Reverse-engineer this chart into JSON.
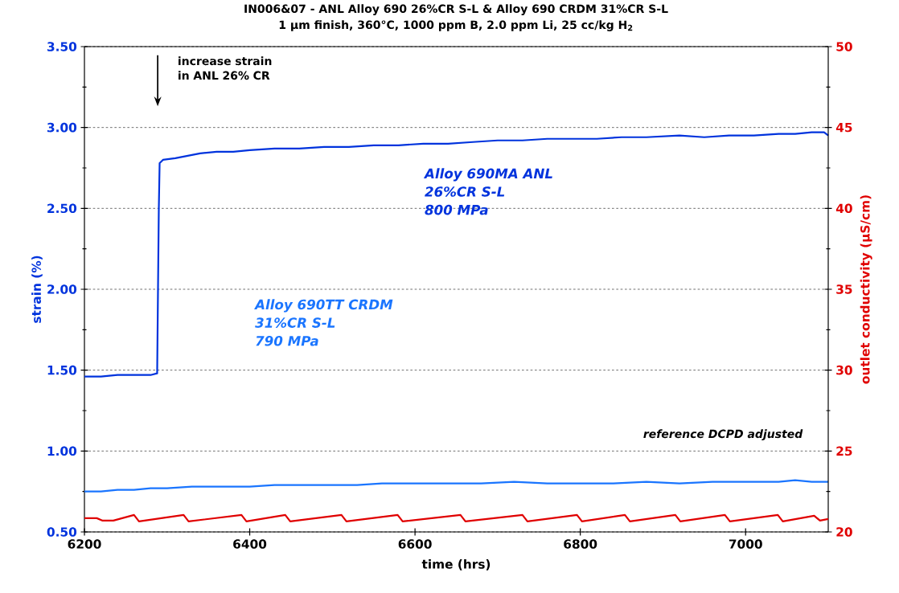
{
  "chart_data": {
    "type": "line",
    "title": "IN006&07 - ANL Alloy 690 26%CR S-L & Alloy 690 CRDM 31%CR S-L",
    "subtitle": "1 µm finish, 360°C, 1000 ppm B, 2.0 ppm Li, 25 cc/kg H$_{2}$",
    "xlabel": "time (hrs)",
    "ylabel": "strain (%)",
    "y2label": "outlet conductivity (µS/cm)",
    "xlim": [
      6200,
      7100
    ],
    "xticks": [
      6200,
      6400,
      6600,
      6800,
      7000
    ],
    "ylim": [
      0.5,
      3.5
    ],
    "yticks": [
      {
        "value": 0.5,
        "label": "0.50"
      },
      {
        "value": 1.0,
        "label": "1.00"
      },
      {
        "value": 1.5,
        "label": "1.50"
      },
      {
        "value": 2.0,
        "label": "2.00"
      },
      {
        "value": 2.5,
        "label": "2.50"
      },
      {
        "value": 3.0,
        "label": "3.00"
      },
      {
        "value": 3.5,
        "label": "3.50"
      }
    ],
    "y2lim": [
      20,
      50
    ],
    "y2ticks": [
      20,
      25,
      30,
      35,
      40,
      45,
      50
    ],
    "grid": "y",
    "annotations": [
      "increase strain in ANL 26% CR",
      "26%CR S-L",
      "800 MPa",
      "31%CR S-L",
      "790 MPa",
      "reference DCPD adjusted"
    ],
    "series": [
      {
        "name": "Alloy 690MA ANL",
        "color": "#0033dd",
        "x": [
          6200,
          6220,
          6240,
          6260,
          6280,
          6288,
          6290,
          6291,
          6295,
          6310,
          6320,
          6340,
          6360,
          6380,
          6400,
          6430,
          6460,
          6490,
          6520,
          6550,
          6580,
          6610,
          6640,
          6670,
          6700,
          6730,
          6760,
          6790,
          6820,
          6850,
          6880,
          6920,
          6950,
          6980,
          7010,
          7040,
          7060,
          7080,
          7095,
          7100
        ],
        "values": [
          1.46,
          1.46,
          1.47,
          1.47,
          1.47,
          1.48,
          2.5,
          2.78,
          2.8,
          2.81,
          2.82,
          2.84,
          2.85,
          2.85,
          2.86,
          2.87,
          2.87,
          2.88,
          2.88,
          2.89,
          2.89,
          2.9,
          2.9,
          2.91,
          2.92,
          2.92,
          2.93,
          2.93,
          2.93,
          2.94,
          2.94,
          2.95,
          2.94,
          2.95,
          2.95,
          2.96,
          2.96,
          2.97,
          2.97,
          2.95
        ]
      },
      {
        "name": "Alloy 690TT CRDM",
        "color": "#1a75ff",
        "x": [
          6200,
          6220,
          6240,
          6260,
          6280,
          6300,
          6330,
          6360,
          6400,
          6430,
          6460,
          6500,
          6530,
          6560,
          6600,
          6640,
          6680,
          6720,
          6760,
          6800,
          6840,
          6880,
          6920,
          6960,
          7000,
          7040,
          7060,
          7080,
          7100
        ],
        "values": [
          0.75,
          0.75,
          0.76,
          0.76,
          0.77,
          0.77,
          0.78,
          0.78,
          0.78,
          0.79,
          0.79,
          0.79,
          0.79,
          0.8,
          0.8,
          0.8,
          0.8,
          0.81,
          0.8,
          0.8,
          0.8,
          0.81,
          0.8,
          0.81,
          0.81,
          0.81,
          0.82,
          0.81,
          0.81
        ]
      },
      {
        "color": "#e00000",
        "axis": "y2",
        "x": [
          6200,
          6215,
          6222,
          6235,
          6260,
          6266,
          6320,
          6326,
          6390,
          6396,
          6443,
          6449,
          6511,
          6517,
          6579,
          6585,
          6655,
          6661,
          6730,
          6736,
          6796,
          6802,
          6854,
          6860,
          6915,
          6921,
          6975,
          6981,
          7039,
          7045,
          7083,
          7090,
          7100
        ],
        "values": [
          20.85,
          20.85,
          20.7,
          20.7,
          21.05,
          20.65,
          21.05,
          20.65,
          21.05,
          20.65,
          21.05,
          20.65,
          21.05,
          20.65,
          21.05,
          20.65,
          21.05,
          20.65,
          21.05,
          20.65,
          21.05,
          20.65,
          21.05,
          20.65,
          21.05,
          20.65,
          21.05,
          20.65,
          21.05,
          20.65,
          21.0,
          20.7,
          20.8
        ]
      }
    ]
  }
}
